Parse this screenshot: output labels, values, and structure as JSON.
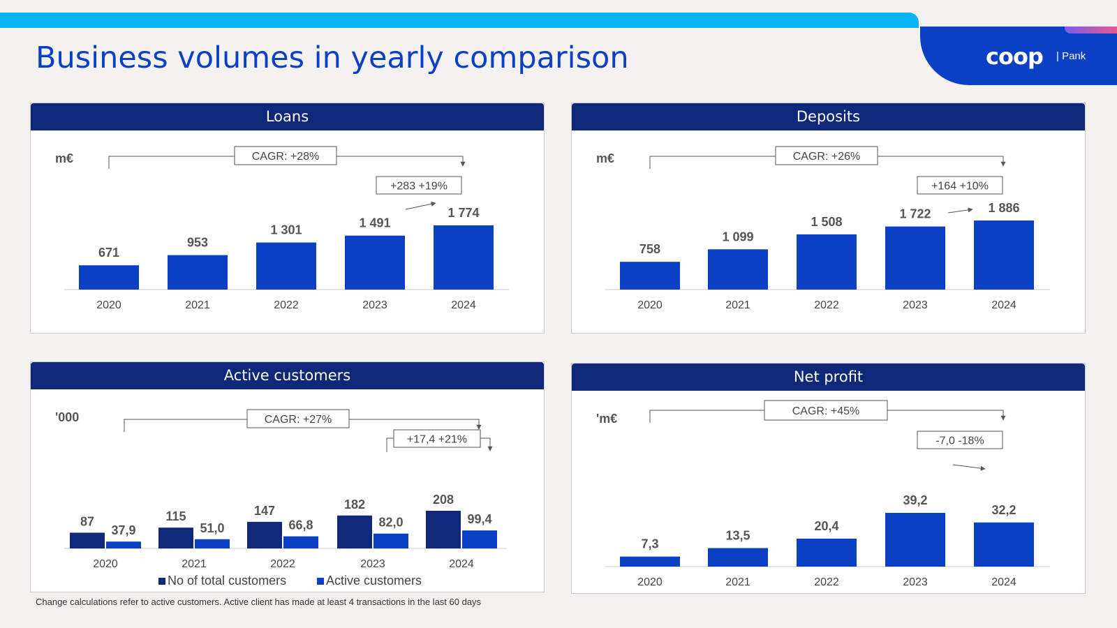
{
  "header": {
    "title": "Business volumes in yearly comparison"
  },
  "brand": {
    "logo": "coop",
    "sub": "| Pank"
  },
  "colors": {
    "bar_primary": "#0b3fc4",
    "bar_dark": "#10287a",
    "header_bg": "#10287a",
    "top_bar": "#0ab4f0",
    "title": "#0b3fc4"
  },
  "footnote": "Change calculations refer to active customers. Active client has made at least 4 transactions in the last 60 days",
  "chart_data": [
    {
      "type": "bar",
      "title": "Loans",
      "unit": "m€",
      "categories": [
        "2020",
        "2021",
        "2022",
        "2023",
        "2024"
      ],
      "series": [
        {
          "values": [
            671,
            953,
            1301,
            1491,
            1774
          ],
          "labels": [
            "671",
            "953",
            "1 301",
            "1 491",
            "1 774"
          ]
        }
      ],
      "cagr": "CAGR:  +28%",
      "change": "+283 +19%",
      "ymax": 1774
    },
    {
      "type": "bar",
      "title": "Deposits",
      "unit": "m€",
      "categories": [
        "2020",
        "2021",
        "2022",
        "2023",
        "2024"
      ],
      "series": [
        {
          "values": [
            758,
            1099,
            1508,
            1722,
            1886
          ],
          "labels": [
            "758",
            "1 099",
            "1 508",
            "1 722",
            "1 886"
          ]
        }
      ],
      "cagr": "CAGR:  +26%",
      "change": "+164 +10%",
      "ymax": 1886
    },
    {
      "type": "bar",
      "title": "Active customers",
      "unit": "'000",
      "categories": [
        "2020",
        "2021",
        "2022",
        "2023",
        "2024"
      ],
      "series": [
        {
          "name": "No of total customers",
          "values": [
            87,
            115,
            147,
            182,
            208
          ],
          "labels": [
            "87",
            "115",
            "147",
            "182",
            "208"
          ]
        },
        {
          "name": "Active customers",
          "values": [
            37.9,
            51.0,
            66.8,
            82.0,
            99.4
          ],
          "labels": [
            "37,9",
            "51,0",
            "66,8",
            "82,0",
            "99,4"
          ]
        }
      ],
      "cagr": "CAGR:  +27%",
      "change": "+17,4 +21%",
      "legend": "bottom",
      "ymax": 208
    },
    {
      "type": "bar",
      "title": "Net profit",
      "unit": "'m€",
      "categories": [
        "2020",
        "2021",
        "2022",
        "2023",
        "2024"
      ],
      "series": [
        {
          "values": [
            7.3,
            13.5,
            20.4,
            39.2,
            32.2
          ],
          "labels": [
            "7,3",
            "13,5",
            "20,4",
            "39,2",
            "32,2"
          ]
        }
      ],
      "cagr": "CAGR:  +45%",
      "change": "-7,0  -18%",
      "ymax": 39.2
    }
  ]
}
